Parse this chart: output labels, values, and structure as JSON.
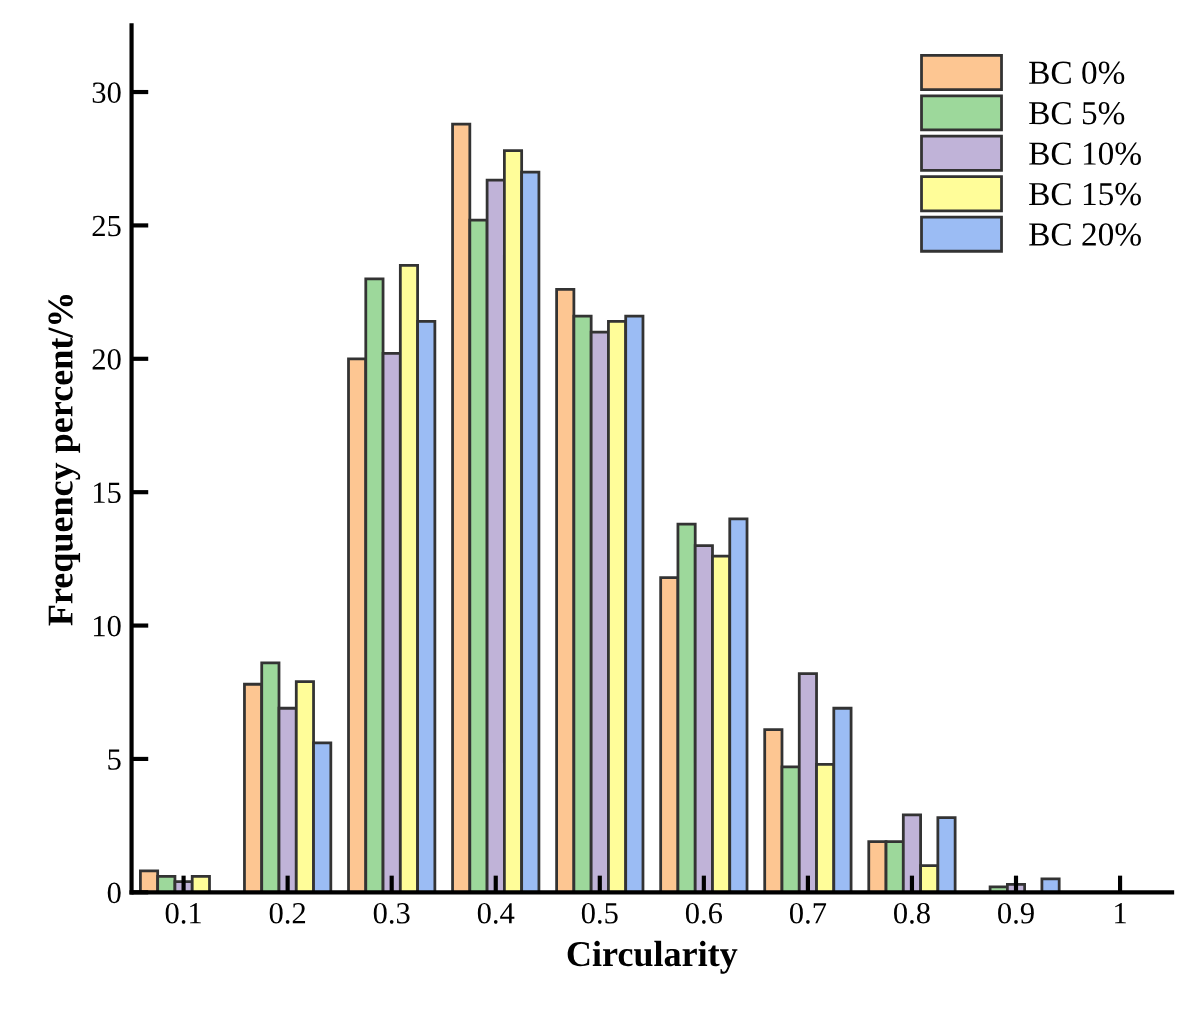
{
  "chart_data": {
    "type": "bar",
    "xlabel": "Circularity",
    "ylabel": "Frequency percent/%",
    "categories": [
      "0.1",
      "0.2",
      "0.3",
      "0.4",
      "0.5",
      "0.6",
      "0.7",
      "0.8",
      "0.9",
      "1"
    ],
    "series": [
      {
        "name": "BC 0%",
        "color": "#fdc692",
        "values": [
          0.8,
          7.8,
          20.0,
          28.8,
          22.6,
          11.8,
          6.1,
          1.9,
          null,
          null
        ]
      },
      {
        "name": "BC 5%",
        "color": "#9dd89b",
        "values": [
          0.6,
          8.6,
          23.0,
          25.2,
          21.6,
          13.8,
          4.7,
          1.9,
          0.2,
          null
        ]
      },
      {
        "name": "BC 10%",
        "color": "#c0b3d8",
        "values": [
          0.4,
          6.9,
          20.2,
          26.7,
          21.0,
          13.0,
          8.2,
          2.9,
          0.3,
          null
        ]
      },
      {
        "name": "BC 15%",
        "color": "#fffd99",
        "values": [
          0.6,
          7.9,
          23.5,
          27.8,
          21.4,
          12.6,
          4.8,
          1.0,
          null,
          null
        ]
      },
      {
        "name": "BC 20%",
        "color": "#9bbcf4",
        "values": [
          null,
          5.6,
          21.4,
          27.0,
          21.6,
          14.0,
          6.9,
          2.8,
          0.5,
          null
        ]
      }
    ],
    "ylim": [
      0,
      32.5
    ],
    "yticks": [
      0,
      5,
      10,
      15,
      20,
      25,
      30
    ],
    "grid": false,
    "legend": "top right"
  }
}
